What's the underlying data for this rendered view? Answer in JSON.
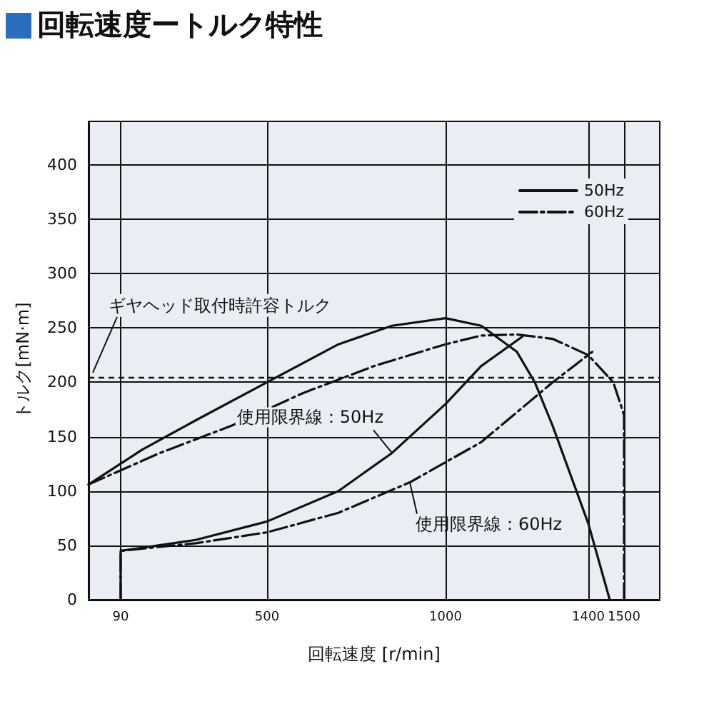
{
  "chart_data": {
    "type": "line",
    "title": "回転速度ートルク特性",
    "xlabel": "回転速度 [r/min]",
    "ylabel": "トルク[mN·m]",
    "xlim": [
      0,
      1600
    ],
    "xticks": [
      90,
      500,
      1000,
      1400,
      1500
    ],
    "ylim": [
      0,
      440
    ],
    "yticks": [
      0,
      50,
      100,
      150,
      200,
      250,
      300,
      350,
      400
    ],
    "grid": true,
    "legend": "top right",
    "marker": "none",
    "series": [
      {
        "name": "50Hz",
        "color": "#111111",
        "line_style": "solid",
        "x": [
          0,
          150,
          300,
          500,
          700,
          850,
          1000,
          1100,
          1200,
          1250,
          1300,
          1350,
          1400,
          1460
        ],
        "values": [
          106,
          138,
          165,
          200,
          235,
          252,
          259,
          252,
          228,
          200,
          160,
          115,
          70,
          0
        ]
      },
      {
        "name": "60Hz",
        "color": "#111111",
        "line_style": "dashed",
        "x": [
          0,
          200,
          400,
          600,
          800,
          1000,
          1100,
          1200,
          1300,
          1400,
          1470,
          1500,
          1500
        ],
        "values": [
          106,
          135,
          160,
          190,
          215,
          235,
          243,
          244,
          240,
          225,
          200,
          170,
          0
        ]
      },
      {
        "color": "#111111",
        "line_style": "solid",
        "x": [
          90,
          90,
          300,
          500,
          700,
          850,
          1000,
          1100,
          1215
        ],
        "values": [
          0,
          45,
          55,
          72,
          100,
          135,
          180,
          215,
          242
        ]
      },
      {
        "color": "#111111",
        "line_style": "dashed",
        "x": [
          90,
          90,
          300,
          500,
          700,
          900,
          1100,
          1300,
          1411
        ],
        "values": [
          0,
          45,
          52,
          62,
          80,
          108,
          145,
          200,
          228
        ]
      }
    ],
    "ref_lines": [
      {
        "axis": "y",
        "value": 205,
        "label": "ギヤヘッド取付時許容トルク",
        "line_style": "dashed",
        "color": "#111111"
      }
    ],
    "annotations": [
      {
        "text": "使用限界線：50Hz",
        "x": 850,
        "y": 135
      },
      {
        "text": "使用限界線：60Hz",
        "x": 900,
        "y": 108
      }
    ]
  }
}
